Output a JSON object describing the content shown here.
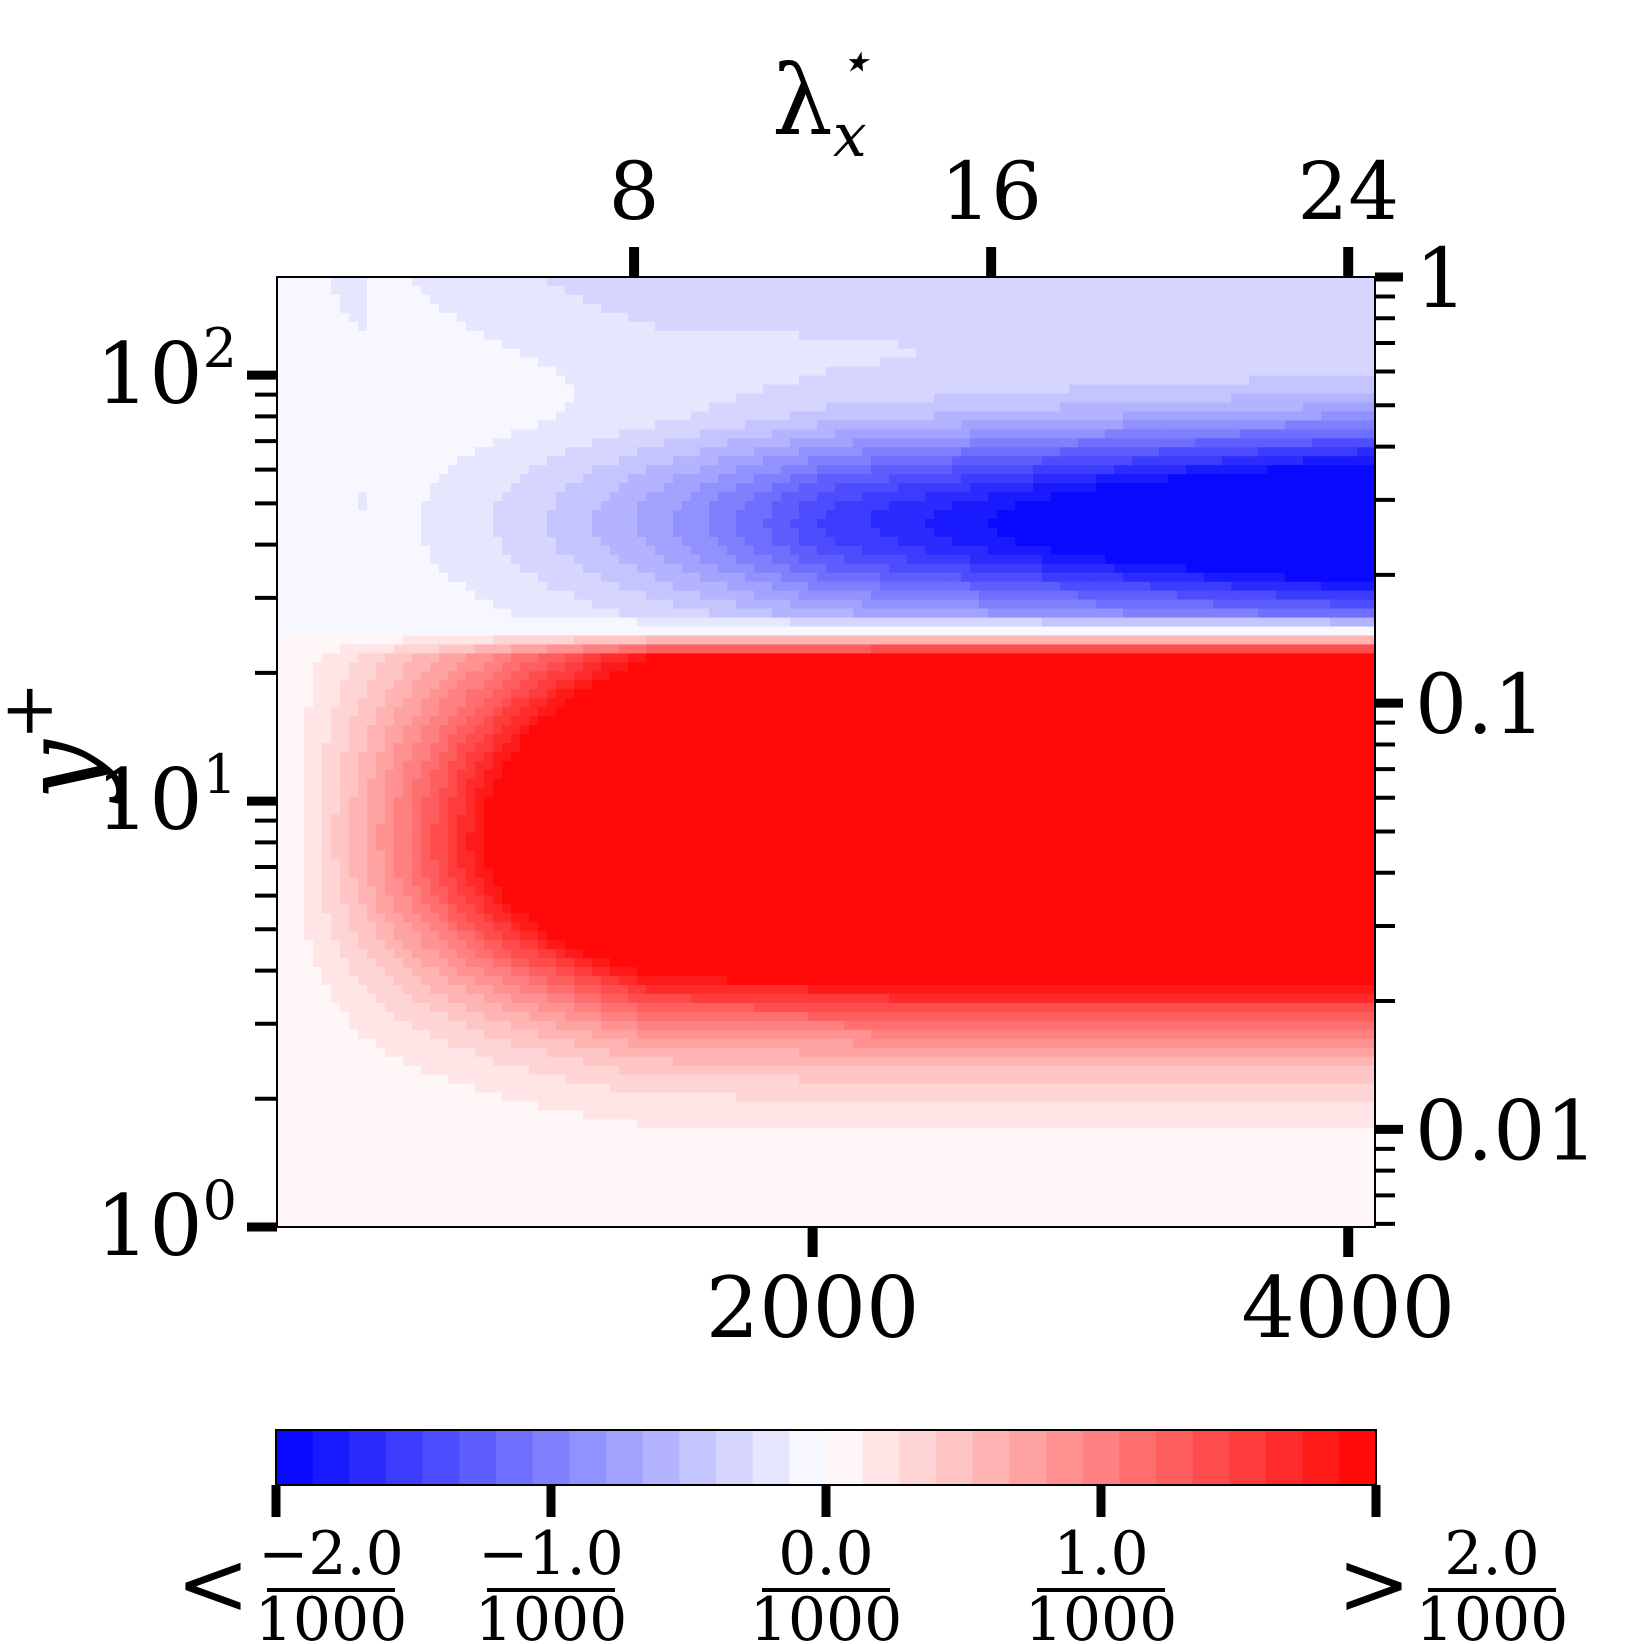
{
  "chart_data": {
    "type": "heatmap",
    "axes": {
      "bottom": {
        "label": "",
        "scale": "linear",
        "range": [
          0,
          4100
        ],
        "ticks": [
          2000,
          4000
        ],
        "tick_labels": [
          "2000",
          "4000"
        ]
      },
      "top": {
        "label_base": "λ",
        "label_sub": "x",
        "label_sup": "⋆",
        "scale": "linear",
        "range": [
          0,
          24.6
        ],
        "ticks": [
          8,
          16,
          24
        ],
        "tick_labels": [
          "8",
          "16",
          "24"
        ]
      },
      "left": {
        "label": "y",
        "label_sup": "+",
        "scale": "log",
        "range": [
          1,
          170
        ],
        "ticks": [
          1,
          10,
          100
        ],
        "tick_labels": [
          {
            "base": "10",
            "exp": "0"
          },
          {
            "base": "10",
            "exp": "1"
          },
          {
            "base": "10",
            "exp": "2"
          }
        ]
      },
      "right": {
        "label": "",
        "scale": "log",
        "range": [
          0.0059,
          1.0
        ],
        "ticks": [
          0.01,
          0.1,
          1
        ],
        "tick_labels": [
          "0.01",
          "0.1",
          "1"
        ]
      }
    },
    "field_description": {
      "zero_contour_y_plus": 25,
      "positive_region": {
        "y_plus_range": [
          1.5,
          25
        ],
        "peak_y_plus": 8
      },
      "negative_region": {
        "y_plus_range": [
          25,
          170
        ],
        "peak_y_plus": 45
      }
    },
    "colorbar": {
      "min": -2.0,
      "max": 2.0,
      "levels": 30,
      "colors": {
        "min": "#0000ff",
        "mid": "#ffffff",
        "max": "#ff0000"
      },
      "ticks": [
        {
          "value": -2.0,
          "prefix": "<",
          "numerator": "−2.0",
          "denominator": "1000"
        },
        {
          "value": -1.0,
          "prefix": "",
          "numerator": "−1.0",
          "denominator": "1000"
        },
        {
          "value": 0.0,
          "prefix": "",
          "numerator": "0.0",
          "denominator": "1000"
        },
        {
          "value": 1.0,
          "prefix": "",
          "numerator": "1.0",
          "denominator": "1000"
        },
        {
          "value": 2.0,
          "prefix": ">",
          "numerator": "2.0",
          "denominator": "1000"
        }
      ]
    }
  }
}
